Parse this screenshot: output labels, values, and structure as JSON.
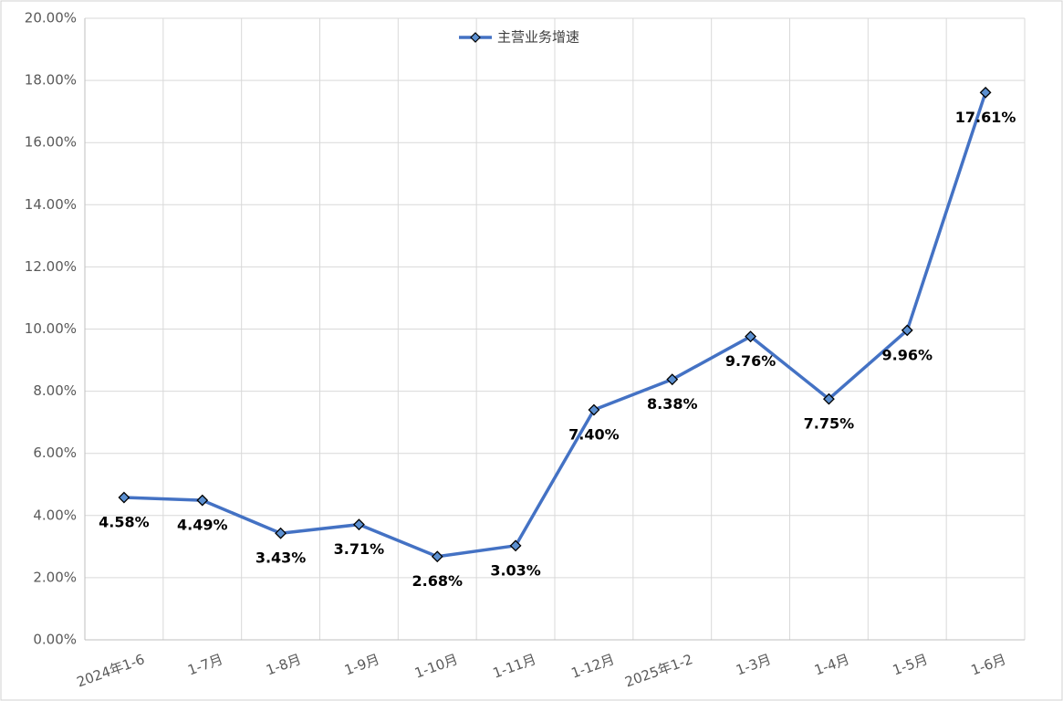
{
  "chart_data": {
    "type": "line",
    "categories": [
      "2024年1-6",
      "1-7月",
      "1-8月",
      "1-9月",
      "1-10月",
      "1-11月",
      "1-12月",
      "2025年1-2",
      "1-3月",
      "1-4月",
      "1-5月",
      "1-6月"
    ],
    "series": [
      {
        "name": "主营业务增速",
        "color": "#4472c4",
        "values": [
          4.58,
          4.49,
          3.43,
          3.71,
          2.68,
          3.03,
          7.4,
          8.38,
          9.76,
          7.75,
          9.96,
          17.61
        ],
        "value_labels": [
          "4.58%",
          "4.49%",
          "3.43%",
          "3.71%",
          "2.68%",
          "3.03%",
          "7.40%",
          "8.38%",
          "9.76%",
          "7.75%",
          "9.96%",
          "17.61%"
        ]
      }
    ],
    "ylim": [
      0,
      20
    ],
    "yticks": [
      {
        "value": 0,
        "label": "0.00%"
      },
      {
        "value": 2,
        "label": "2.00%"
      },
      {
        "value": 4,
        "label": "4.00%"
      },
      {
        "value": 6,
        "label": "6.00%"
      },
      {
        "value": 8,
        "label": "8.00%"
      },
      {
        "value": 10,
        "label": "10.00%"
      },
      {
        "value": 12,
        "label": "12.00%"
      },
      {
        "value": 14,
        "label": "14.00%"
      },
      {
        "value": 16,
        "label": "16.00%"
      },
      {
        "value": 18,
        "label": "18.00%"
      },
      {
        "value": 20,
        "label": "20.00%"
      }
    ],
    "grid": true,
    "legend": "top"
  }
}
